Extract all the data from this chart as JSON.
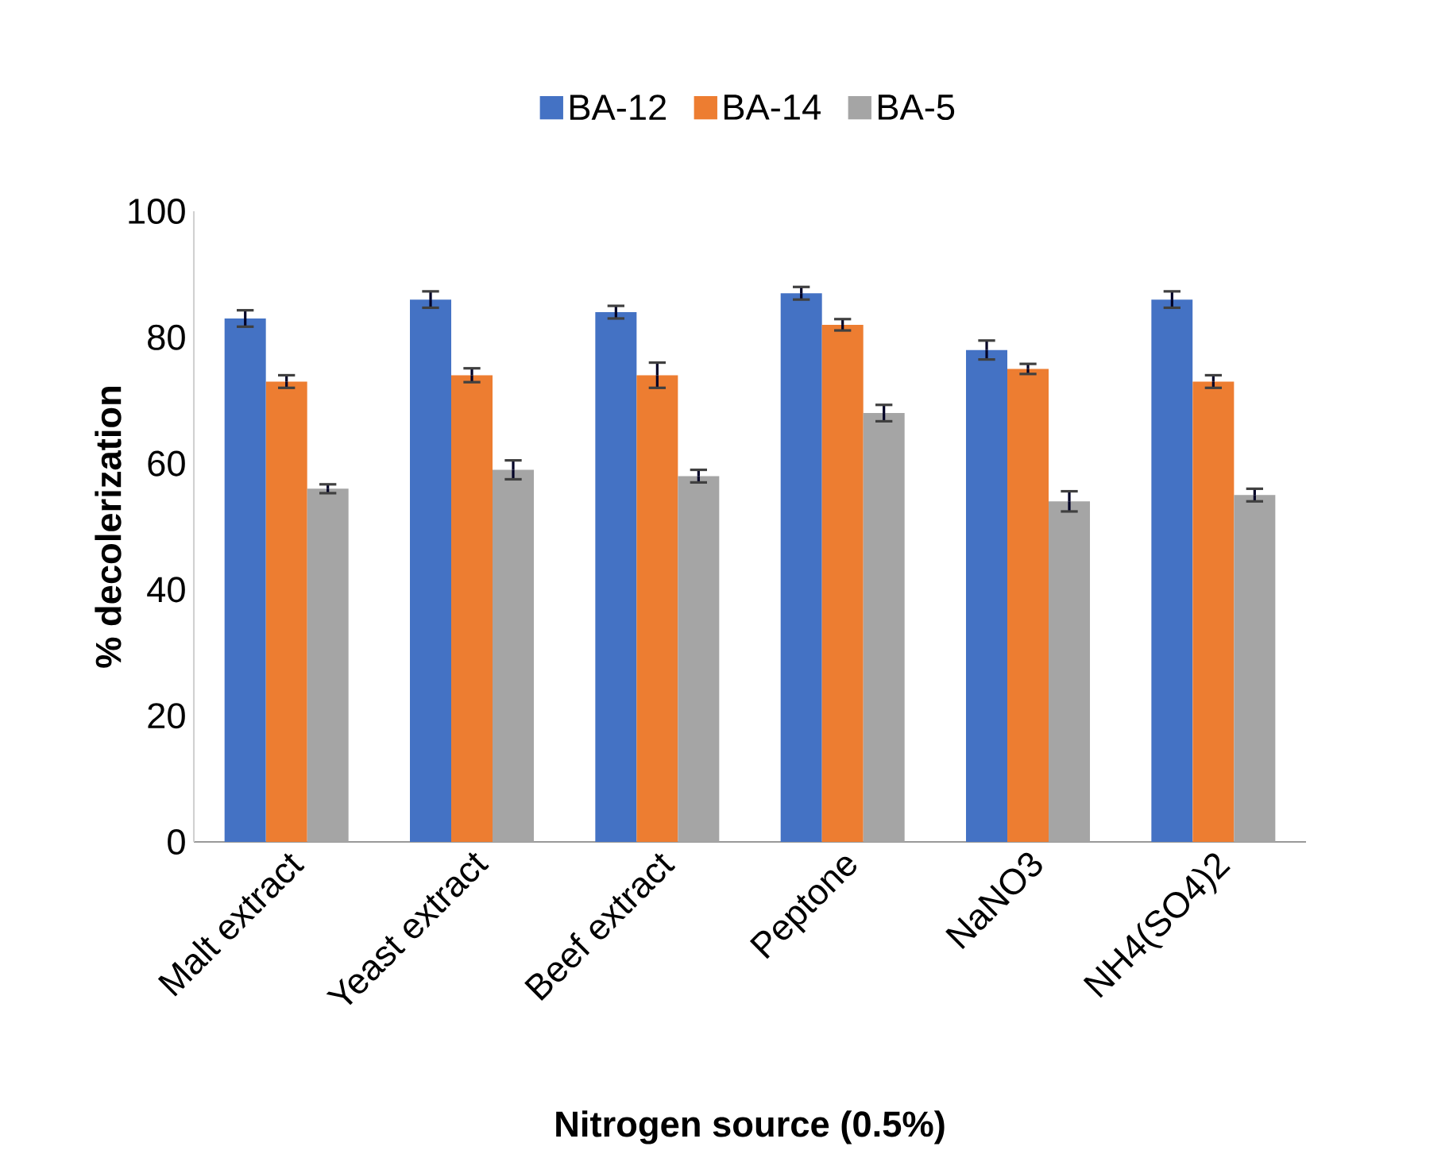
{
  "chart_data": {
    "type": "bar",
    "xlabel": "Nitrogen source (0.5%)",
    "ylabel": "% decolerization",
    "categories": [
      "Malt extract",
      "Yeast extract",
      "Beef extract",
      "Peptone",
      "NaNO3",
      "NH4(SO4)2"
    ],
    "series": [
      {
        "name": "BA-12",
        "color": "#4472c4",
        "values": [
          83,
          86,
          84,
          87,
          78,
          86
        ],
        "errors": [
          1.3,
          1.3,
          1,
          1,
          1.5,
          1.3
        ]
      },
      {
        "name": "BA-14",
        "color": "#ed7d31",
        "values": [
          73,
          74,
          74,
          82,
          75,
          73
        ],
        "errors": [
          1,
          1.1,
          2,
          0.9,
          0.8,
          1
        ]
      },
      {
        "name": "BA-5",
        "color": "#a5a5a5",
        "values": [
          56,
          59,
          58,
          68,
          54,
          55
        ],
        "errors": [
          0.7,
          1.5,
          1,
          1.3,
          1.6,
          1
        ]
      }
    ],
    "ylim": [
      0,
      100
    ],
    "yticks": [
      0,
      20,
      40,
      60,
      80,
      100
    ],
    "legend": "top",
    "grid": false
  }
}
